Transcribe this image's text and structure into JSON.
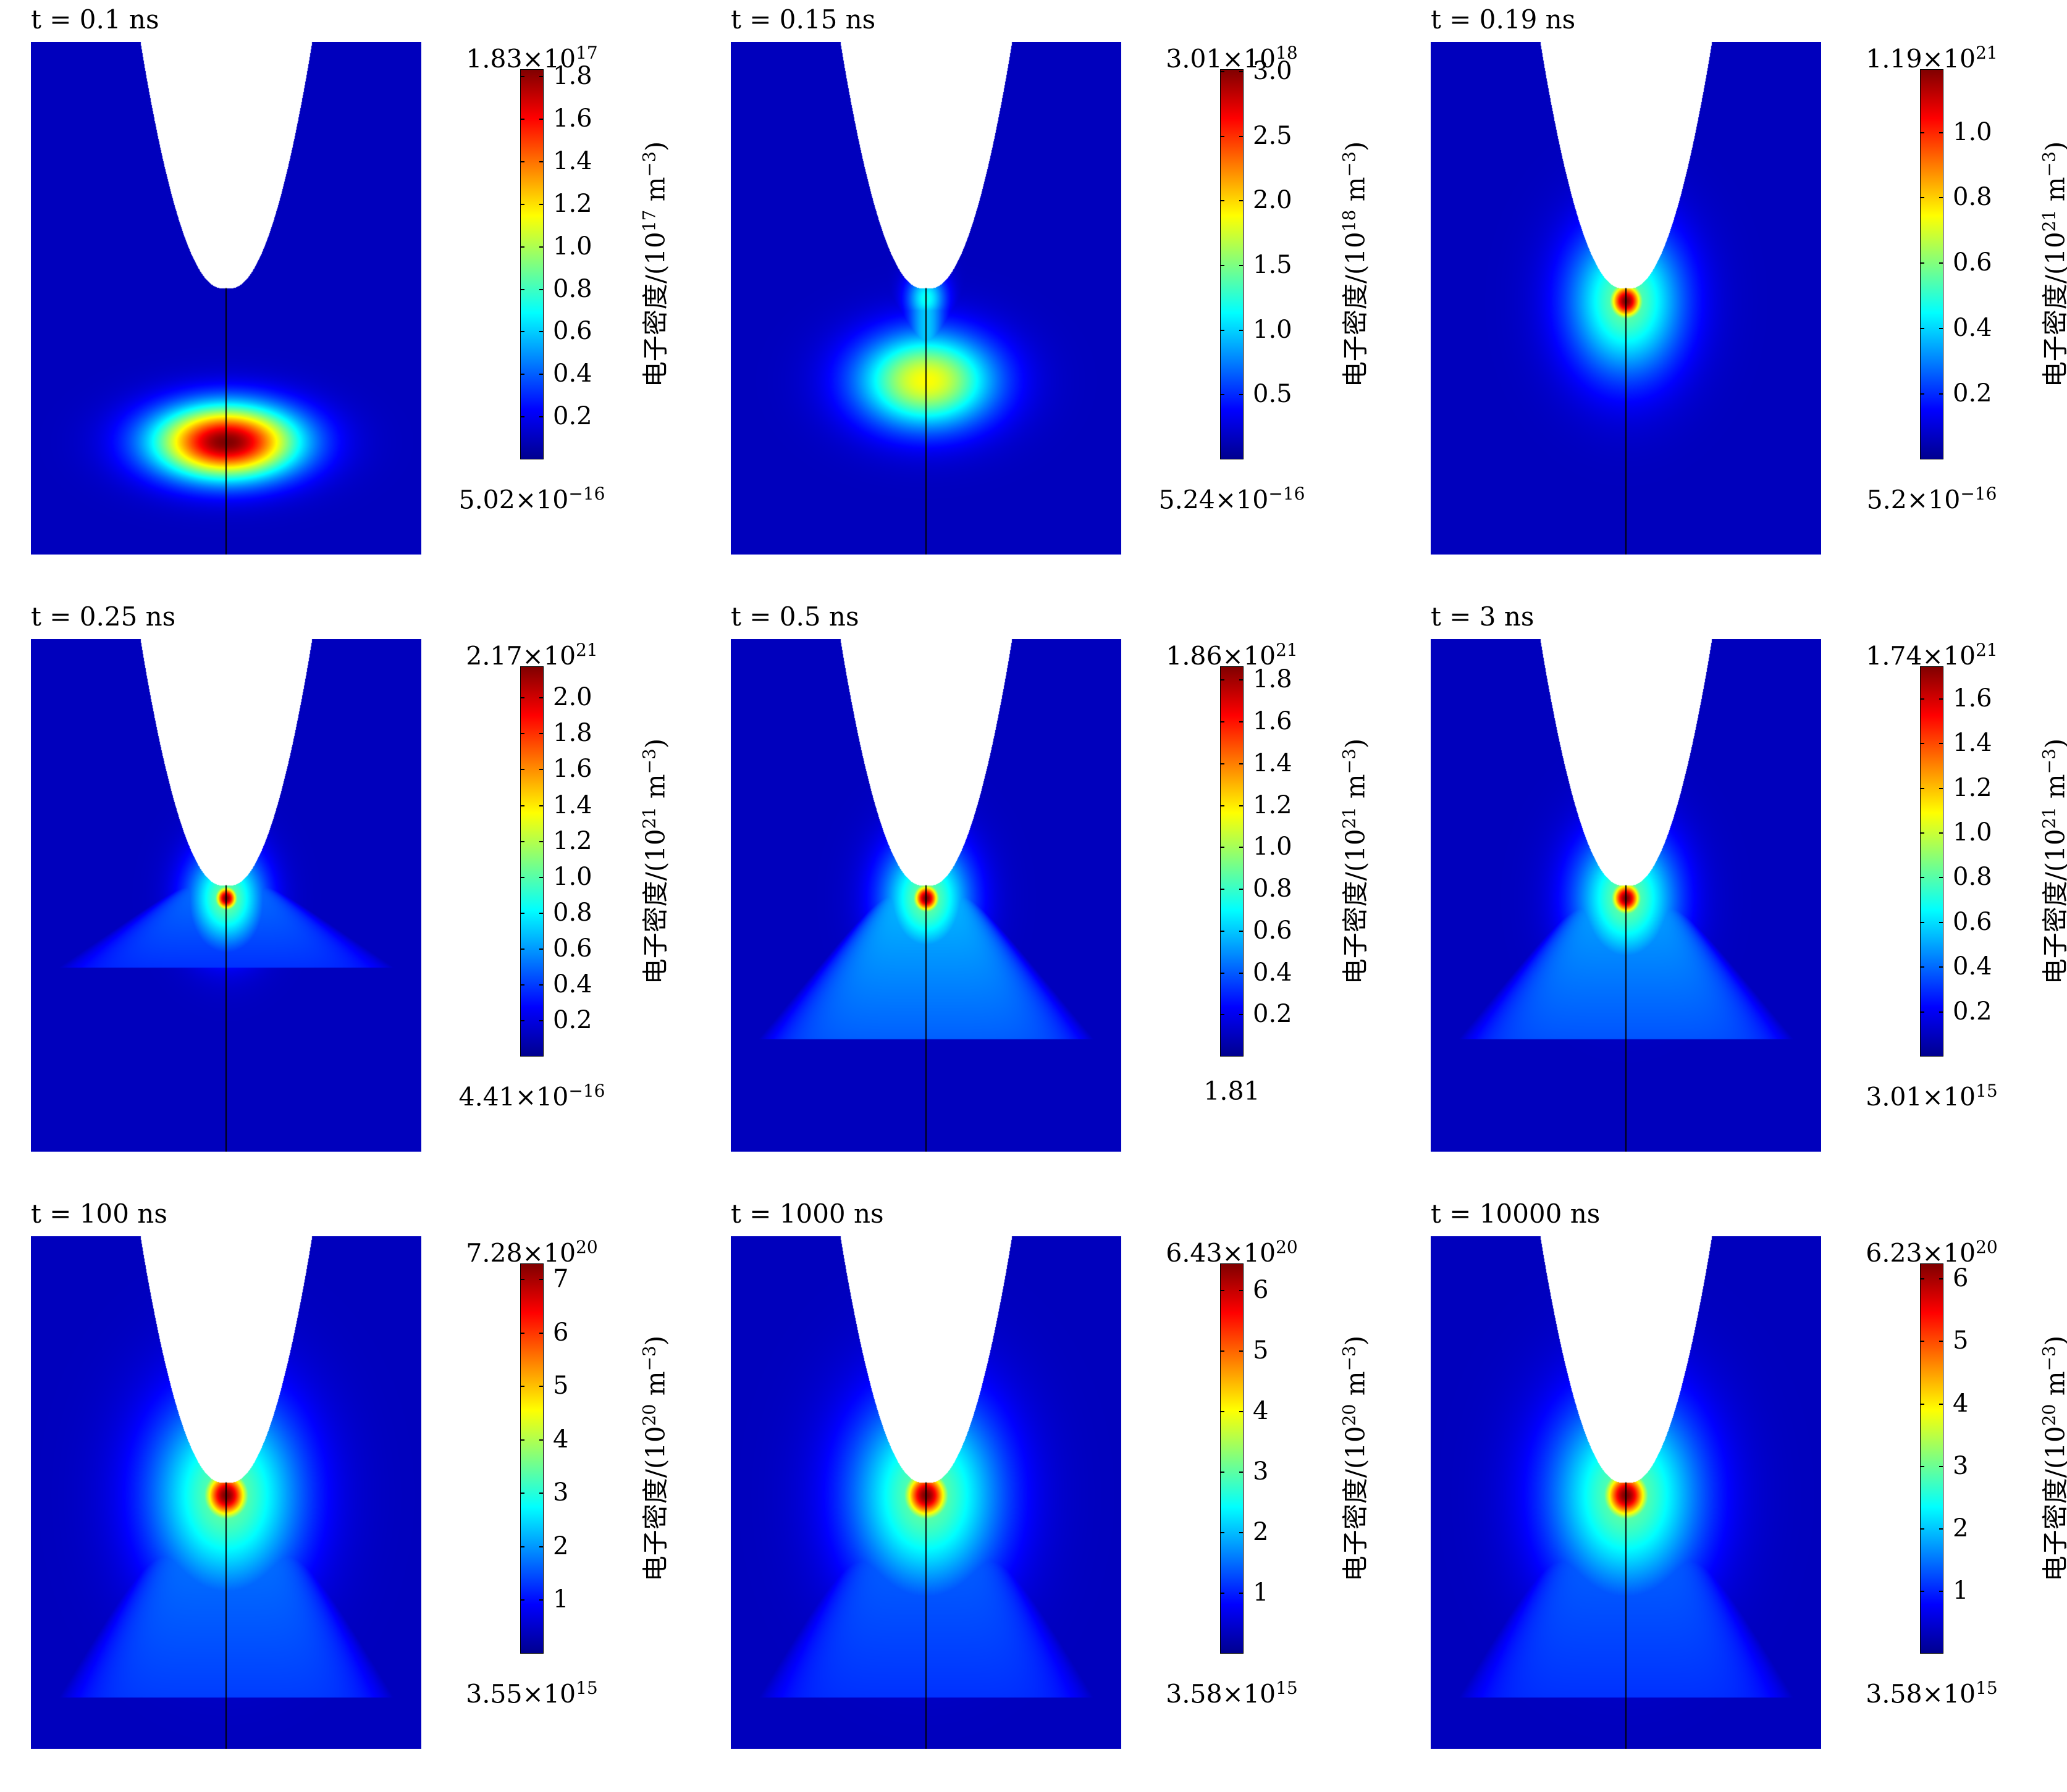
{
  "unit_prefix": "电子密度/(10",
  "unit_suffix": " m",
  "unit_neg3": "−3",
  "panels": [
    {
      "title": "t = 0.1 ns",
      "max_mant": "1.83",
      "max_exp": "17",
      "min_mant": "5.02",
      "min_exp": "−16",
      "min_plain": "",
      "cb_exp": "17",
      "cb_max": 1.83,
      "ticks": [
        "0.2",
        "0.4",
        "0.6",
        "0.8",
        "1.0",
        "1.2",
        "1.4",
        "1.6",
        "1.8"
      ],
      "tick_vals": [
        0.2,
        0.4,
        0.6,
        0.8,
        1.0,
        1.2,
        1.4,
        1.6,
        1.8
      ],
      "field": {
        "type": "pulse",
        "center_y": 0.78,
        "spread_x": 0.18,
        "spread_y": 0.07,
        "amp": 1.0
      }
    },
    {
      "title": "t = 0.15 ns",
      "max_mant": "3.01",
      "max_exp": "18",
      "min_mant": "5.24",
      "min_exp": "−16",
      "min_plain": "",
      "cb_exp": "18",
      "cb_max": 3.01,
      "ticks": [
        "0.5",
        "1.0",
        "1.5",
        "2.0",
        "2.5",
        "3.0"
      ],
      "tick_vals": [
        0.5,
        1.0,
        1.5,
        2.0,
        2.5,
        3.0
      ],
      "field": {
        "type": "stream",
        "center_y": 0.66,
        "spread_x": 0.17,
        "spread_y": 0.09,
        "amp": 0.6
      }
    },
    {
      "title": "t = 0.19 ns",
      "max_mant": "1.19",
      "max_exp": "21",
      "min_mant": "5.2",
      "min_exp": "−16",
      "min_plain": "",
      "cb_exp": "21",
      "cb_max": 1.19,
      "ticks": [
        "0.2",
        "0.4",
        "0.6",
        "0.8",
        "1.0"
      ],
      "tick_vals": [
        0.2,
        0.4,
        0.6,
        0.8,
        1.0
      ],
      "field": {
        "type": "tip",
        "spread": 0.045,
        "amp": 1.0,
        "glow": 0.0,
        "glow_y": 0.5
      }
    },
    {
      "title": "t = 0.25 ns",
      "max_mant": "2.17",
      "max_exp": "21",
      "min_mant": "4.41",
      "min_exp": "−16",
      "min_plain": "",
      "cb_exp": "21",
      "cb_max": 2.17,
      "ticks": [
        "0.2",
        "0.4",
        "0.6",
        "0.8",
        "1.0",
        "1.2",
        "1.4",
        "1.6",
        "1.8",
        "2.0"
      ],
      "tick_vals": [
        0.2,
        0.4,
        0.6,
        0.8,
        1.0,
        1.2,
        1.4,
        1.6,
        1.8,
        2.0
      ],
      "field": {
        "type": "tip",
        "spread": 0.03,
        "amp": 1.0,
        "glow": 0.2,
        "glow_y": 0.64
      }
    },
    {
      "title": "t = 0.5 ns",
      "max_mant": "1.86",
      "max_exp": "21",
      "min_mant": "",
      "min_exp": "",
      "min_plain": "1.81",
      "cb_exp": "21",
      "cb_max": 1.86,
      "ticks": [
        "0.2",
        "0.4",
        "0.6",
        "0.8",
        "1.0",
        "1.2",
        "1.4",
        "1.6",
        "1.8"
      ],
      "tick_vals": [
        0.2,
        0.4,
        0.6,
        0.8,
        1.0,
        1.2,
        1.4,
        1.6,
        1.8
      ],
      "field": {
        "type": "tip",
        "spread": 0.035,
        "amp": 1.0,
        "glow": 0.28,
        "glow_y": 0.78
      }
    },
    {
      "title": "t = 3 ns",
      "max_mant": "1.74",
      "max_exp": "21",
      "min_mant": "3.01",
      "min_exp": "15",
      "min_plain": "",
      "cb_exp": "21",
      "cb_max": 1.74,
      "ticks": [
        "0.2",
        "0.4",
        "0.6",
        "0.8",
        "1.0",
        "1.2",
        "1.4",
        "1.6"
      ],
      "tick_vals": [
        0.2,
        0.4,
        0.6,
        0.8,
        1.0,
        1.2,
        1.4,
        1.6
      ],
      "field": {
        "type": "tip",
        "spread": 0.04,
        "amp": 1.0,
        "glow": 0.26,
        "glow_y": 0.78
      }
    },
    {
      "title": "t = 100 ns",
      "max_mant": "7.28",
      "max_exp": "20",
      "min_mant": "3.55",
      "min_exp": "15",
      "min_plain": "",
      "cb_exp": "20",
      "cb_max": 7.28,
      "ticks": [
        "1",
        "2",
        "3",
        "4",
        "5",
        "6",
        "7"
      ],
      "tick_vals": [
        1,
        2,
        3,
        4,
        5,
        6,
        7
      ],
      "field": {
        "type": "tip",
        "spread": 0.06,
        "amp": 1.0,
        "glow": 0.22,
        "glow_y": 0.9
      }
    },
    {
      "title": "t = 1000 ns",
      "max_mant": "6.43",
      "max_exp": "20",
      "min_mant": "3.58",
      "min_exp": "15",
      "min_plain": "",
      "cb_exp": "20",
      "cb_max": 6.43,
      "ticks": [
        "1",
        "2",
        "3",
        "4",
        "5",
        "6"
      ],
      "tick_vals": [
        1,
        2,
        3,
        4,
        5,
        6
      ],
      "field": {
        "type": "tip",
        "spread": 0.06,
        "amp": 1.0,
        "glow": 0.2,
        "glow_y": 0.9
      }
    },
    {
      "title": "t = 10000 ns",
      "max_mant": "6.23",
      "max_exp": "20",
      "min_mant": "3.58",
      "min_exp": "15",
      "min_plain": "",
      "cb_exp": "20",
      "cb_max": 6.23,
      "ticks": [
        "1",
        "2",
        "3",
        "4",
        "5",
        "6"
      ],
      "tick_vals": [
        1,
        2,
        3,
        4,
        5,
        6
      ],
      "field": {
        "type": "tip",
        "spread": 0.06,
        "amp": 1.0,
        "glow": 0.2,
        "glow_y": 0.9
      }
    }
  ],
  "chart_data": {
    "type": "heatmap",
    "colormap": "jet",
    "grid": false,
    "panels": [
      {
        "time_ns": 0.1,
        "max": 1.83e+17,
        "min": 5.02e-16
      },
      {
        "time_ns": 0.15,
        "max": 3.01e+18,
        "min": 5.24e-16
      },
      {
        "time_ns": 0.19,
        "max": 1.19e+21,
        "min": 5.2e-16
      },
      {
        "time_ns": 0.25,
        "max": 2.17e+21,
        "min": 4.41e-16
      },
      {
        "time_ns": 0.5,
        "max": 1.86e+21,
        "min": 1.81
      },
      {
        "time_ns": 3,
        "max": 1.74e+21,
        "min": 3010000000000000.0
      },
      {
        "time_ns": 100,
        "max": 7.28e+20,
        "min": 3550000000000000.0
      },
      {
        "time_ns": 1000,
        "max": 6.43e+20,
        "min": 3580000000000000.0
      },
      {
        "time_ns": 10000,
        "max": 6.23e+20,
        "min": 3580000000000000.0
      }
    ]
  }
}
